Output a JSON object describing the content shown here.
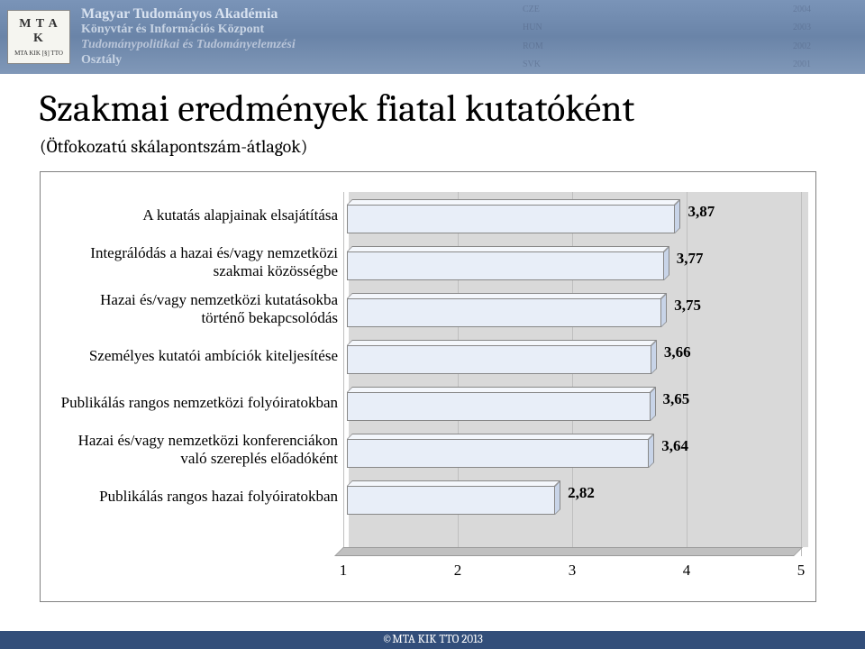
{
  "header": {
    "org_line1": "Magyar Tudományos Akadémia",
    "org_line2": "Könyvtár és Információs Központ",
    "org_line3": "Tudománypolitikai és Tudományelemzési",
    "org_line4": "Osztály",
    "logo_top": "M T A",
    "logo_mid": "K",
    "logo_bottom": "MTA KIK [§] TTO",
    "tags_col1": [
      "CZE",
      "HUN",
      "ROM",
      "SVK"
    ],
    "tags_col2": [
      "2004",
      "2003",
      "2002",
      "2001"
    ]
  },
  "title": "Szakmai eredmények fiatal kutatóként",
  "subtitle": "(Ötfokozatú skálapontszám-átlagok)",
  "chart": {
    "type": "bar-horizontal-3d",
    "xlim": [
      1,
      5
    ],
    "xticks": [
      1,
      2,
      3,
      4,
      5
    ],
    "grid_color": "#bfbfbf",
    "floor_color": "#c0c0c0",
    "wall_color": "#d9d9d9",
    "bar_front_color": "#e8eef8",
    "bar_top_color": "#f4f7fc",
    "bar_side_color": "#c8d4e8",
    "bar_border_color": "#888888",
    "label_fontsize": 17,
    "value_fontsize": 17,
    "categories": [
      {
        "label": "A kutatás alapjainak elsajátítása",
        "value": 3.87,
        "value_text": "3,87"
      },
      {
        "label": "Integrálódás a hazai és/vagy nemzetközi szakmai közösségbe",
        "value": 3.77,
        "value_text": "3,77"
      },
      {
        "label": "Hazai és/vagy nemzetközi kutatásokba történő bekapcsolódás",
        "value": 3.75,
        "value_text": "3,75"
      },
      {
        "label": "Személyes kutatói ambíciók kiteljesítése",
        "value": 3.66,
        "value_text": "3,66"
      },
      {
        "label": "Publikálás rangos nemzetközi folyóiratokban",
        "value": 3.65,
        "value_text": "3,65"
      },
      {
        "label": "Hazai és/vagy nemzetközi konferenciákon való szereplés előadóként",
        "value": 3.64,
        "value_text": "3,64"
      },
      {
        "label": "Publikálás rangos hazai folyóiratokban",
        "value": 2.82,
        "value_text": "2,82"
      }
    ]
  },
  "footer": "©MTA KIK TTO 2013"
}
